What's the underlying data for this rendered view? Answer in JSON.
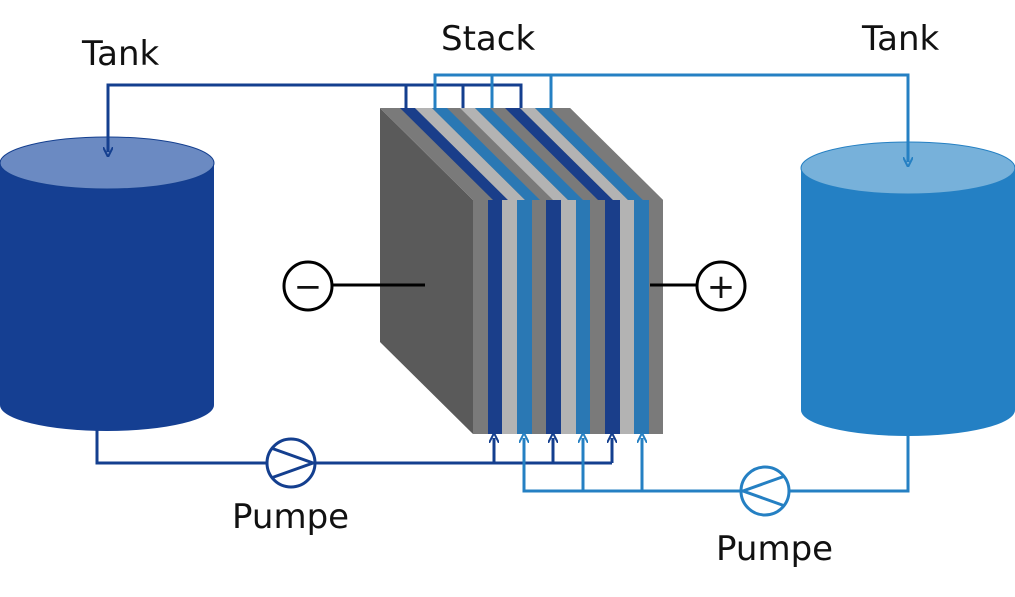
{
  "labels": {
    "stack": "Stack",
    "tank_left": "Tank",
    "tank_right": "Tank",
    "pump_left": "Pumpe",
    "pump_right": "Pumpe",
    "terminal_negative": "−",
    "terminal_positive": "+"
  },
  "colors": {
    "dark_blue": "#143f8f",
    "light_blue": "#2580c3",
    "tank_left_body": "#153f92",
    "tank_left_top": "#6b8ac2",
    "tank_right_body": "#2480c4",
    "tank_right_top": "#77b1da",
    "stack_dark": "#5a5a5a",
    "stack_mid": "#7a7a7a",
    "stack_light": "#b3b3b3",
    "stack_blue_dark": "#1a3e8a",
    "stack_blue_light": "#2a78b4"
  }
}
